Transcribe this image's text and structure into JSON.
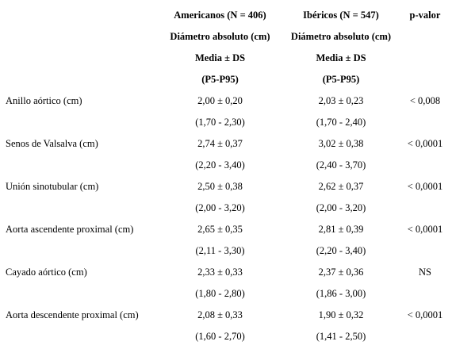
{
  "header": {
    "col1": {
      "group": "Americanos (N = 406)",
      "measure": "Diámetro absoluto (cm)",
      "stat": "Media ± DS",
      "range": "(P5-P95)"
    },
    "col2": {
      "group": "Ibéricos (N = 547)",
      "measure": "Diámetro absoluto (cm)",
      "stat": "Media ± DS",
      "range": "(P5-P95)"
    },
    "col3": {
      "label": "p-valor"
    }
  },
  "rows": [
    {
      "label": "Anillo aórtico (cm)",
      "am_mean": "2,00 ± 0,20",
      "am_range": "(1,70 - 2,30)",
      "ib_mean": "2,03 ± 0,23",
      "ib_range": "(1,70 - 2,40)",
      "p": "< 0,008"
    },
    {
      "label": "Senos de Valsalva (cm)",
      "am_mean": "2,74 ± 0,37",
      "am_range": "(2,20 - 3,40)",
      "ib_mean": "3,02 ± 0,38",
      "ib_range": "(2,40 - 3,70)",
      "p": "< 0,0001"
    },
    {
      "label": "Unión sinotubular (cm)",
      "am_mean": "2,50 ± 0,38",
      "am_range": "(2,00 - 3,20)",
      "ib_mean": "2,62 ± 0,37",
      "ib_range": "(2,00 - 3,20)",
      "p": "< 0,0001"
    },
    {
      "label": "Aorta ascendente proximal (cm)",
      "am_mean": "2,65 ± 0,35",
      "am_range": "(2,11 - 3,30)",
      "ib_mean": "2,81 ± 0,39",
      "ib_range": "(2,20 - 3,40)",
      "p": "< 0,0001"
    },
    {
      "label": "Cayado aórtico (cm)",
      "am_mean": "2,33 ± 0,33",
      "am_range": "(1,80 - 2,80)",
      "ib_mean": "2,37 ± 0,36",
      "ib_range": "(1,86 - 3,00)",
      "p": "NS"
    },
    {
      "label": "Aorta descendente proximal (cm)",
      "am_mean": "2,08 ± 0,33",
      "am_range": "(1,60 - 2,70)",
      "ib_mean": "1,90 ± 0,32",
      "ib_range": "(1,41 - 2,50)",
      "p": "< 0,0001"
    }
  ]
}
